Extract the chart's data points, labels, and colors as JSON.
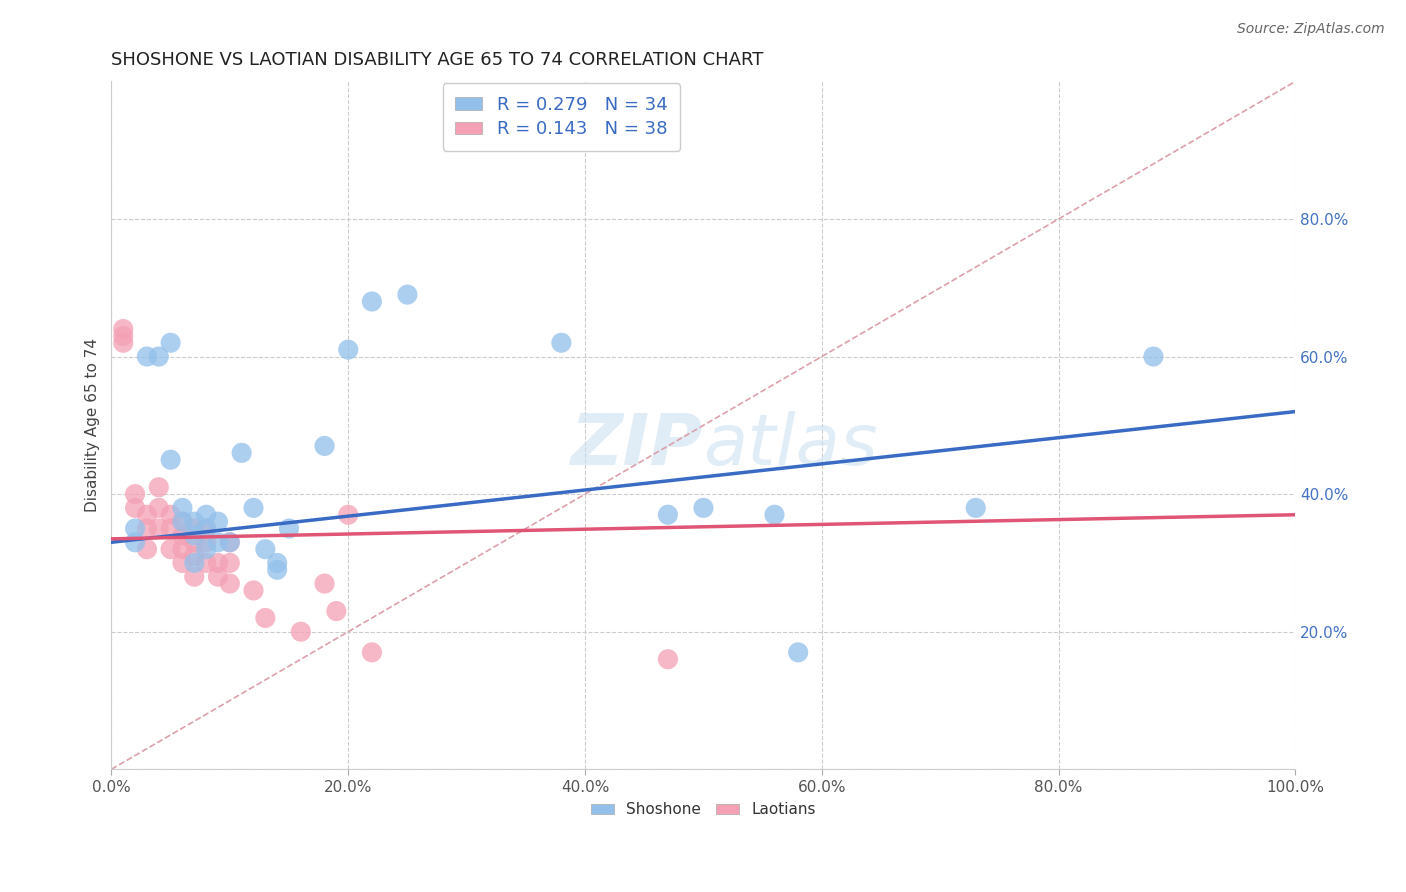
{
  "title": "SHOSHONE VS LAOTIAN DISABILITY AGE 65 TO 74 CORRELATION CHART",
  "source": "Source: ZipAtlas.com",
  "ylabel": "Disability Age 65 to 74",
  "xlabel": "",
  "xlim": [
    0,
    1.0
  ],
  "ylim": [
    0,
    1.0
  ],
  "xticks": [
    0.0,
    0.2,
    0.4,
    0.6,
    0.8,
    1.0
  ],
  "yticks": [
    0.0,
    0.2,
    0.4,
    0.6,
    0.8
  ],
  "xticklabels": [
    "0.0%",
    "20.0%",
    "40.0%",
    "60.0%",
    "80.0%",
    "100.0%"
  ],
  "yticklabels_right": [
    "",
    "20.0%",
    "40.0%",
    "60.0%",
    "80.0%"
  ],
  "shoshone_color": "#92c0ea",
  "laotian_color": "#f4a0b5",
  "shoshone_R": 0.279,
  "shoshone_N": 34,
  "laotian_R": 0.143,
  "laotian_N": 38,
  "watermark": "ZIPatlas",
  "shoshone_x": [
    0.02,
    0.03,
    0.04,
    0.05,
    0.05,
    0.06,
    0.07,
    0.07,
    0.08,
    0.08,
    0.08,
    0.09,
    0.1,
    0.11,
    0.12,
    0.13,
    0.14,
    0.15,
    0.18,
    0.2,
    0.22,
    0.25,
    0.38,
    0.47,
    0.5,
    0.56,
    0.58,
    0.73,
    0.88,
    0.02,
    0.06,
    0.07,
    0.09,
    0.14
  ],
  "shoshone_y": [
    0.33,
    0.6,
    0.6,
    0.45,
    0.62,
    0.38,
    0.34,
    0.3,
    0.37,
    0.35,
    0.32,
    0.36,
    0.33,
    0.46,
    0.38,
    0.32,
    0.29,
    0.35,
    0.47,
    0.61,
    0.68,
    0.69,
    0.62,
    0.37,
    0.38,
    0.37,
    0.17,
    0.38,
    0.6,
    0.35,
    0.36,
    0.36,
    0.33,
    0.3
  ],
  "laotian_x": [
    0.01,
    0.01,
    0.01,
    0.02,
    0.02,
    0.03,
    0.03,
    0.03,
    0.04,
    0.04,
    0.04,
    0.05,
    0.05,
    0.05,
    0.06,
    0.06,
    0.06,
    0.06,
    0.07,
    0.07,
    0.07,
    0.07,
    0.08,
    0.08,
    0.08,
    0.09,
    0.09,
    0.1,
    0.1,
    0.1,
    0.12,
    0.13,
    0.16,
    0.18,
    0.19,
    0.2,
    0.22,
    0.47
  ],
  "laotian_y": [
    0.62,
    0.63,
    0.64,
    0.38,
    0.4,
    0.37,
    0.35,
    0.32,
    0.41,
    0.38,
    0.35,
    0.37,
    0.35,
    0.32,
    0.36,
    0.34,
    0.32,
    0.3,
    0.35,
    0.33,
    0.31,
    0.28,
    0.35,
    0.33,
    0.3,
    0.3,
    0.28,
    0.33,
    0.3,
    0.27,
    0.26,
    0.22,
    0.2,
    0.27,
    0.23,
    0.37,
    0.17,
    0.16
  ],
  "shoshone_trend": [
    0.33,
    0.52
  ],
  "laotian_trend": [
    0.335,
    0.37
  ],
  "background_color": "#ffffff",
  "grid_color": "#cccccc",
  "title_fontsize": 13,
  "label_fontsize": 11,
  "tick_fontsize": 11,
  "legend_fontsize": 13,
  "source_fontsize": 10
}
